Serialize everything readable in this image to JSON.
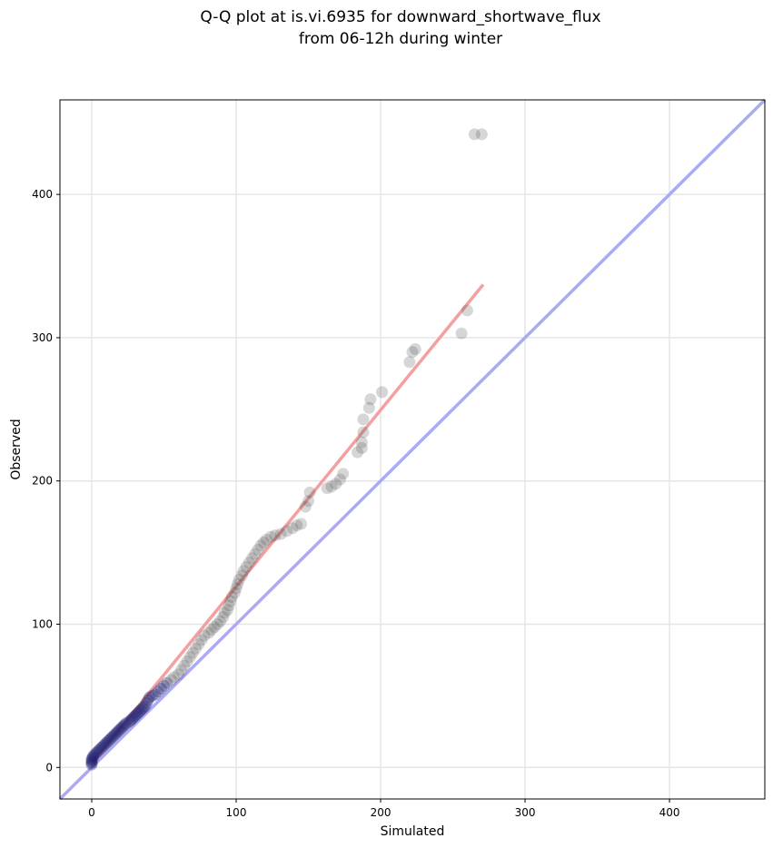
{
  "chart_data": {
    "type": "scatter",
    "title": "Q-Q plot at is.vi.6935 for downward_shortwave_flux",
    "subtitle": "from 06-12h during winter",
    "xlabel": "Simulated",
    "ylabel": "Observed",
    "xlim": [
      -22,
      466
    ],
    "ylim": [
      -22,
      466
    ],
    "xticks": [
      0,
      100,
      200,
      300,
      400
    ],
    "yticks": [
      0,
      100,
      200,
      300,
      400
    ],
    "grid": true,
    "legend": "none",
    "colors": {
      "points": "#444444",
      "low_quantiles": "#1a1a6e",
      "fit_line": "#f4a0a0",
      "identity_line": "#aaaaf5",
      "grid": "#e6e6e6"
    },
    "identity_line": {
      "x": [
        -22,
        466
      ],
      "y": [
        -22,
        466
      ]
    },
    "fit_line": {
      "x": [
        0,
        271
      ],
      "y": [
        3,
        337
      ]
    },
    "points": [
      [
        0,
        2
      ],
      [
        0,
        3
      ],
      [
        0,
        4
      ],
      [
        0,
        5
      ],
      [
        0,
        6
      ],
      [
        1,
        7
      ],
      [
        1,
        8
      ],
      [
        2,
        9
      ],
      [
        3,
        10
      ],
      [
        4,
        11
      ],
      [
        5,
        12
      ],
      [
        6,
        13
      ],
      [
        7,
        14
      ],
      [
        8,
        15
      ],
      [
        9,
        16
      ],
      [
        10,
        17
      ],
      [
        11,
        18
      ],
      [
        12,
        19
      ],
      [
        13,
        20
      ],
      [
        14,
        21
      ],
      [
        15,
        22
      ],
      [
        16,
        23
      ],
      [
        17,
        24
      ],
      [
        18,
        25
      ],
      [
        19,
        26
      ],
      [
        20,
        27
      ],
      [
        21,
        28
      ],
      [
        22,
        29
      ],
      [
        23,
        30
      ],
      [
        24,
        31
      ],
      [
        26,
        32
      ],
      [
        27,
        33
      ],
      [
        28,
        34
      ],
      [
        29,
        35
      ],
      [
        30,
        36
      ],
      [
        31,
        37
      ],
      [
        32,
        38
      ],
      [
        33,
        39
      ],
      [
        34,
        40
      ],
      [
        35,
        41
      ],
      [
        36,
        42
      ],
      [
        37,
        43
      ],
      [
        38,
        45
      ],
      [
        39,
        47
      ],
      [
        40,
        49
      ],
      [
        42,
        50
      ],
      [
        44,
        51
      ],
      [
        46,
        53
      ],
      [
        48,
        55
      ],
      [
        50,
        57
      ],
      [
        52,
        59
      ],
      [
        55,
        61
      ],
      [
        57,
        63
      ],
      [
        60,
        65
      ],
      [
        62,
        68
      ],
      [
        64,
        71
      ],
      [
        66,
        74
      ],
      [
        68,
        77
      ],
      [
        70,
        80
      ],
      [
        72,
        83
      ],
      [
        74,
        86
      ],
      [
        76,
        89
      ],
      [
        78,
        92
      ],
      [
        81,
        94
      ],
      [
        83,
        96
      ],
      [
        85,
        98
      ],
      [
        87,
        100
      ],
      [
        89,
        102
      ],
      [
        91,
        105
      ],
      [
        92,
        108
      ],
      [
        94,
        110
      ],
      [
        95,
        113
      ],
      [
        96,
        116
      ],
      [
        97,
        119
      ],
      [
        99,
        122
      ],
      [
        100,
        125
      ],
      [
        101,
        128
      ],
      [
        102,
        131
      ],
      [
        104,
        134
      ],
      [
        105,
        137
      ],
      [
        107,
        140
      ],
      [
        109,
        143
      ],
      [
        111,
        146
      ],
      [
        113,
        149
      ],
      [
        115,
        152
      ],
      [
        117,
        155
      ],
      [
        119,
        157
      ],
      [
        121,
        159
      ],
      [
        124,
        161
      ],
      [
        127,
        162
      ],
      [
        131,
        163
      ],
      [
        135,
        165
      ],
      [
        139,
        167
      ],
      [
        142,
        169
      ],
      [
        145,
        170
      ],
      [
        148,
        182
      ],
      [
        150,
        186
      ],
      [
        151,
        192
      ],
      [
        163,
        195
      ],
      [
        166,
        196
      ],
      [
        169,
        198
      ],
      [
        172,
        201
      ],
      [
        174,
        205
      ],
      [
        184,
        220
      ],
      [
        187,
        223
      ],
      [
        187,
        227
      ],
      [
        188,
        234
      ],
      [
        188,
        243
      ],
      [
        192,
        251
      ],
      [
        193,
        257
      ],
      [
        201,
        262
      ],
      [
        220,
        283
      ],
      [
        222,
        290
      ],
      [
        224,
        292
      ],
      [
        256,
        303
      ],
      [
        260,
        319
      ],
      [
        265,
        442
      ],
      [
        270,
        442
      ]
    ]
  }
}
